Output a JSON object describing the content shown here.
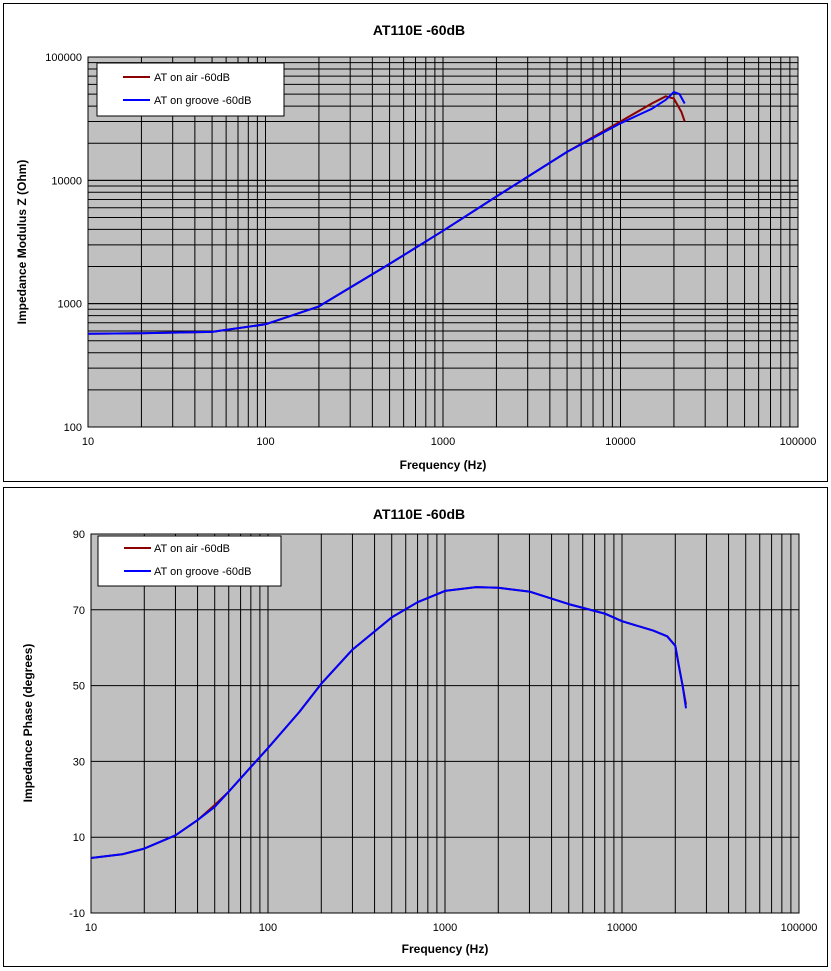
{
  "colors": {
    "plot_background": "#c0c0c0",
    "gridline": "#000000",
    "air_series": "#8b0000",
    "groove_series": "#0000ff"
  },
  "chart_data": [
    {
      "type": "line",
      "title": "AT110E -60dB",
      "xlabel": "Frequency (Hz)",
      "ylabel": "Impedance Modulus Z (Ohm)",
      "xscale": "log",
      "yscale": "log",
      "xlim": [
        10,
        100000
      ],
      "ylim": [
        100,
        100000
      ],
      "xticks": [
        "10",
        "100",
        "1000",
        "10000",
        "100000"
      ],
      "yticks": [
        "100",
        "1000",
        "10000",
        "100000"
      ],
      "grid": true,
      "legend_position": "top-left",
      "series": [
        {
          "name": "AT on air -60dB",
          "color": "#8b0000",
          "x": [
            10,
            20,
            50,
            100,
            200,
            500,
            1000,
            2000,
            5000,
            10000,
            15000,
            18000,
            20000,
            22000,
            23000
          ],
          "y": [
            570,
            575,
            590,
            680,
            950,
            2100,
            3900,
            7400,
            17000,
            30000,
            42000,
            48000,
            46000,
            36000,
            30000
          ]
        },
        {
          "name": "AT on groove -60dB",
          "color": "#0000ff",
          "x": [
            10,
            20,
            50,
            100,
            200,
            500,
            1000,
            2000,
            5000,
            10000,
            15000,
            18000,
            20000,
            21500,
            23000
          ],
          "y": [
            570,
            575,
            590,
            680,
            950,
            2100,
            3900,
            7400,
            17000,
            29000,
            38000,
            45000,
            52000,
            50000,
            42000
          ]
        }
      ]
    },
    {
      "type": "line",
      "title": "AT110E -60dB",
      "xlabel": "Frequency (Hz)",
      "ylabel": "Impedance Phase (degrees)",
      "xscale": "log",
      "yscale": "linear",
      "xlim": [
        10,
        100000
      ],
      "ylim": [
        -10,
        90
      ],
      "xticks": [
        "10",
        "100",
        "1000",
        "10000",
        "100000"
      ],
      "yticks": [
        "-10",
        "10",
        "30",
        "50",
        "70",
        "90"
      ],
      "grid": true,
      "legend_position": "top-left",
      "series": [
        {
          "name": "AT on air -60dB",
          "color": "#8b0000",
          "x": [
            10,
            15,
            20,
            30,
            40,
            50,
            60,
            80,
            100,
            150,
            200,
            300,
            500,
            700,
            1000,
            1500,
            2000,
            3000,
            5000,
            8000,
            10000,
            15000,
            18000,
            20000,
            21000,
            22000,
            23000
          ],
          "y": [
            4.5,
            5.5,
            7,
            10.5,
            14.5,
            18.5,
            22,
            28.5,
            33.5,
            43,
            50.5,
            59.5,
            68,
            72,
            75,
            76,
            75.8,
            74.8,
            71.5,
            69,
            67,
            64.5,
            63,
            60.5,
            55,
            50,
            45
          ]
        },
        {
          "name": "AT on groove -60dB",
          "color": "#0000ff",
          "x": [
            10,
            15,
            20,
            30,
            40,
            50,
            60,
            80,
            100,
            150,
            200,
            300,
            500,
            700,
            1000,
            1500,
            2000,
            3000,
            5000,
            8000,
            10000,
            15000,
            18000,
            20000,
            21000,
            22000,
            23000
          ],
          "y": [
            4.5,
            5.5,
            7,
            10.5,
            14.5,
            18,
            22,
            28.5,
            33.5,
            43,
            50.5,
            59.5,
            68,
            72,
            75,
            76,
            75.8,
            74.8,
            71.5,
            69,
            67,
            64.5,
            63,
            60.5,
            55,
            50,
            44
          ]
        }
      ]
    }
  ]
}
